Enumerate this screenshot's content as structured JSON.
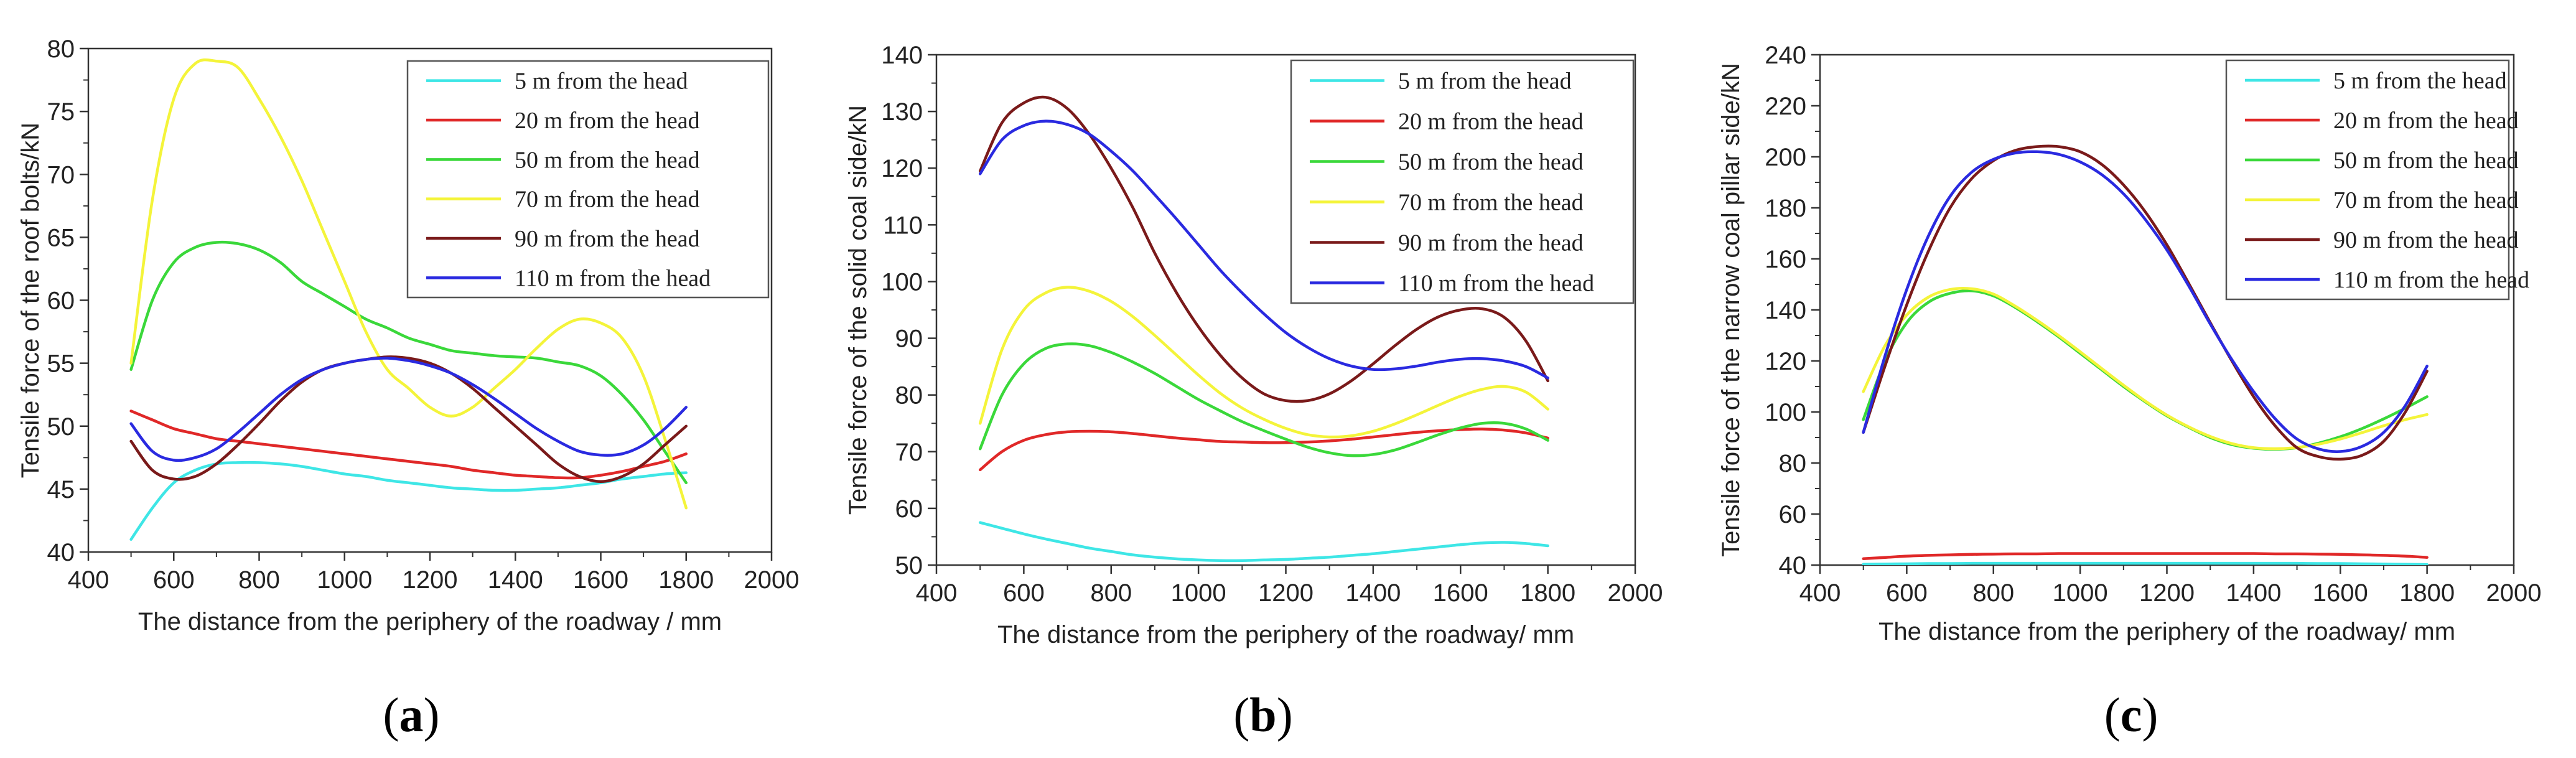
{
  "figure": {
    "captions": [
      "(a)",
      "(b)",
      "(c)"
    ]
  },
  "chart_data": [
    {
      "type": "line",
      "panel": "a",
      "title": "",
      "xlabel": "The distance from the periphery of the roadway / mm",
      "ylabel": "Tensile force of the roof bolts/kN",
      "xlim": [
        400,
        2000
      ],
      "ylim": [
        40,
        80
      ],
      "xticks": [
        400,
        600,
        800,
        1000,
        1200,
        1400,
        1600,
        1800,
        2000
      ],
      "yticks": [
        40,
        45,
        50,
        55,
        60,
        65,
        70,
        75,
        80
      ],
      "legend_position": "top-right",
      "x": [
        500,
        550,
        600,
        650,
        700,
        750,
        800,
        850,
        900,
        950,
        1000,
        1050,
        1100,
        1150,
        1200,
        1250,
        1300,
        1350,
        1400,
        1450,
        1500,
        1550,
        1600,
        1650,
        1700,
        1750,
        1800
      ],
      "series": [
        {
          "name": "5 m from the head",
          "color": "#3ee6e6",
          "values": [
            41,
            43.5,
            45.5,
            46.5,
            47,
            47.1,
            47.1,
            47,
            46.8,
            46.5,
            46.2,
            46,
            45.7,
            45.5,
            45.3,
            45.1,
            45,
            44.9,
            44.9,
            45,
            45.1,
            45.3,
            45.5,
            45.8,
            46,
            46.2,
            46.3
          ]
        },
        {
          "name": "20 m from the head",
          "color": "#e02828",
          "values": [
            51.2,
            50.5,
            49.8,
            49.4,
            49,
            48.8,
            48.6,
            48.4,
            48.2,
            48,
            47.8,
            47.6,
            47.4,
            47.2,
            47,
            46.8,
            46.5,
            46.3,
            46.1,
            46,
            45.9,
            45.9,
            46.1,
            46.4,
            46.8,
            47.2,
            47.8
          ]
        },
        {
          "name": "50 m from the head",
          "color": "#3ad83a",
          "values": [
            54.5,
            60,
            63,
            64.2,
            64.6,
            64.5,
            64,
            63,
            61.5,
            60.5,
            59.5,
            58.5,
            57.8,
            57,
            56.5,
            56,
            55.8,
            55.6,
            55.5,
            55.4,
            55.1,
            54.8,
            54,
            52.5,
            50.5,
            48,
            45.5
          ]
        },
        {
          "name": "70 m from the head",
          "color": "#f4f43a",
          "values": [
            55,
            68,
            76,
            78.8,
            79,
            78.5,
            76,
            73,
            69.5,
            65.5,
            61.5,
            57.5,
            54.5,
            53,
            51.5,
            50.8,
            51.5,
            53,
            54.5,
            56.2,
            57.7,
            58.5,
            58.2,
            57,
            54,
            49,
            43.5
          ]
        },
        {
          "name": "90 m from the head",
          "color": "#7a1a1a",
          "values": [
            48.8,
            46.5,
            45.8,
            46,
            47,
            48.5,
            50.2,
            52,
            53.5,
            54.5,
            55,
            55.3,
            55.5,
            55.4,
            55,
            54.2,
            53,
            51.5,
            50,
            48.5,
            47,
            46,
            45.6,
            46,
            47,
            48.5,
            50
          ]
        },
        {
          "name": "110 m from the head",
          "color": "#2a2ae0",
          "values": [
            50.2,
            48,
            47.3,
            47.5,
            48.2,
            49.5,
            51,
            52.5,
            53.7,
            54.5,
            55,
            55.3,
            55.4,
            55.2,
            54.8,
            54.2,
            53.3,
            52.2,
            51,
            49.8,
            48.8,
            48,
            47.7,
            47.8,
            48.5,
            49.8,
            51.5
          ]
        }
      ]
    },
    {
      "type": "line",
      "panel": "b",
      "title": "",
      "xlabel": "The distance from the periphery of the roadway/ mm",
      "ylabel": "Tensile force of the solid coal side/kN",
      "xlim": [
        400,
        2000
      ],
      "ylim": [
        50,
        140
      ],
      "xticks": [
        400,
        600,
        800,
        1000,
        1200,
        1400,
        1600,
        1800,
        2000
      ],
      "yticks": [
        50,
        60,
        70,
        80,
        90,
        100,
        110,
        120,
        130,
        140
      ],
      "legend_position": "top-right",
      "x": [
        500,
        550,
        600,
        650,
        700,
        750,
        800,
        850,
        900,
        950,
        1000,
        1050,
        1100,
        1150,
        1200,
        1250,
        1300,
        1350,
        1400,
        1450,
        1500,
        1550,
        1600,
        1650,
        1700,
        1750,
        1800
      ],
      "series": [
        {
          "name": "5 m from the head",
          "color": "#3ee6e6",
          "values": [
            57.5,
            56.5,
            55.5,
            54.6,
            53.8,
            53,
            52.4,
            51.8,
            51.4,
            51.1,
            50.9,
            50.8,
            50.8,
            50.9,
            51,
            51.2,
            51.4,
            51.7,
            52,
            52.4,
            52.8,
            53.2,
            53.6,
            53.9,
            54,
            53.8,
            53.4
          ]
        },
        {
          "name": "20 m from the head",
          "color": "#e02828",
          "values": [
            66.8,
            70,
            72,
            73,
            73.5,
            73.6,
            73.5,
            73.2,
            72.8,
            72.4,
            72.1,
            71.8,
            71.7,
            71.6,
            71.6,
            71.7,
            71.9,
            72.2,
            72.6,
            73,
            73.4,
            73.7,
            73.9,
            74,
            73.8,
            73.3,
            72.4
          ]
        },
        {
          "name": "50 m from the head",
          "color": "#3ad83a",
          "values": [
            70.5,
            80,
            85.5,
            88.2,
            89,
            88.7,
            87.5,
            85.8,
            83.8,
            81.5,
            79.2,
            77.2,
            75.3,
            73.7,
            72.2,
            70.8,
            69.8,
            69.3,
            69.5,
            70.3,
            71.6,
            73,
            74.2,
            75,
            75,
            74,
            72
          ]
        },
        {
          "name": "70 m from the head",
          "color": "#f4f43a",
          "values": [
            75,
            88,
            95,
            98,
            99,
            98.3,
            96.5,
            93.8,
            90.5,
            87,
            83.5,
            80.3,
            77.7,
            75.7,
            74.1,
            73,
            72.6,
            72.8,
            73.6,
            74.9,
            76.5,
            78.2,
            79.8,
            81,
            81.5,
            80.5,
            77.5
          ]
        },
        {
          "name": "90 m from the head",
          "color": "#7a1a1a",
          "values": [
            119.5,
            128,
            131.5,
            132.5,
            130.5,
            126,
            120,
            113,
            105,
            98,
            92,
            87,
            83,
            80.2,
            79,
            79,
            80.2,
            82.5,
            85.5,
            88.7,
            91.6,
            93.8,
            95,
            95.2,
            93.7,
            89.5,
            82.5
          ]
        },
        {
          "name": "110 m from the head",
          "color": "#2a2ae0",
          "values": [
            119,
            125,
            127.5,
            128.3,
            127.7,
            126,
            123,
            119.5,
            115.3,
            111,
            106.5,
            102,
            98,
            94.3,
            91,
            88.4,
            86.4,
            85.1,
            84.5,
            84.6,
            85.1,
            85.8,
            86.3,
            86.4,
            86,
            85,
            83
          ]
        }
      ]
    },
    {
      "type": "line",
      "panel": "c",
      "title": "",
      "xlabel": "The distance from the periphery of the roadway/ mm",
      "ylabel": "Tensile force of the narrow coal pillar side/kN",
      "xlim": [
        400,
        2000
      ],
      "ylim": [
        40,
        240
      ],
      "xticks": [
        400,
        600,
        800,
        1000,
        1200,
        1400,
        1600,
        1800,
        2000
      ],
      "yticks": [
        40,
        60,
        80,
        100,
        120,
        140,
        160,
        180,
        200,
        220,
        240
      ],
      "legend_position": "top-right",
      "x": [
        500,
        550,
        600,
        650,
        700,
        750,
        800,
        850,
        900,
        950,
        1000,
        1050,
        1100,
        1150,
        1200,
        1250,
        1300,
        1350,
        1400,
        1450,
        1500,
        1550,
        1600,
        1650,
        1700,
        1750,
        1800
      ],
      "series": [
        {
          "name": "5 m from the head",
          "color": "#3ee6e6",
          "values": [
            40.3,
            40.4,
            40.5,
            40.6,
            40.6,
            40.7,
            40.7,
            40.7,
            40.7,
            40.7,
            40.7,
            40.7,
            40.7,
            40.7,
            40.7,
            40.7,
            40.7,
            40.7,
            40.7,
            40.7,
            40.7,
            40.6,
            40.6,
            40.5,
            40.4,
            40.3,
            40.2
          ]
        },
        {
          "name": "20 m from the head",
          "color": "#e02828",
          "values": [
            42.5,
            43,
            43.5,
            43.8,
            44,
            44.2,
            44.3,
            44.4,
            44.4,
            44.5,
            44.5,
            44.5,
            44.5,
            44.5,
            44.5,
            44.5,
            44.5,
            44.5,
            44.5,
            44.4,
            44.4,
            44.3,
            44.2,
            44,
            43.8,
            43.5,
            43
          ]
        },
        {
          "name": "50 m from the head",
          "color": "#3ad83a",
          "values": [
            97,
            120,
            135,
            143,
            146.5,
            147.5,
            145.5,
            141,
            135.5,
            129.5,
            123,
            116.5,
            110,
            104,
            98.5,
            94,
            90,
            87.2,
            85.8,
            85.4,
            86,
            87.8,
            90.3,
            93.5,
            97.3,
            101.5,
            106
          ]
        },
        {
          "name": "70 m from the head",
          "color": "#f4f43a",
          "values": [
            108,
            126,
            138,
            145,
            148,
            148.3,
            146.2,
            141.5,
            136,
            130,
            123.6,
            117,
            110.5,
            104.3,
            98.8,
            94.2,
            90.4,
            87.6,
            86,
            85.6,
            86.1,
            87.4,
            89.4,
            91.9,
            94.6,
            97,
            99
          ]
        },
        {
          "name": "90 m from the head",
          "color": "#7a1a1a",
          "values": [
            92,
            118,
            142,
            163,
            180,
            191.5,
            198.5,
            202.5,
            204,
            204,
            202,
            197,
            189,
            178.5,
            165.5,
            150.5,
            135,
            120,
            106,
            94.5,
            86,
            82.5,
            81.5,
            83,
            88.5,
            100,
            116
          ]
        },
        {
          "name": "110 m from the head",
          "color": "#2a2ae0",
          "values": [
            92,
            122,
            148,
            169,
            184.5,
            194,
            199,
            201.5,
            202,
            201,
            198,
            193,
            185.5,
            175.5,
            163.5,
            149.5,
            134.5,
            120.5,
            108,
            97.3,
            89.4,
            85.5,
            84.5,
            86.5,
            92,
            102.5,
            118
          ]
        }
      ]
    }
  ]
}
